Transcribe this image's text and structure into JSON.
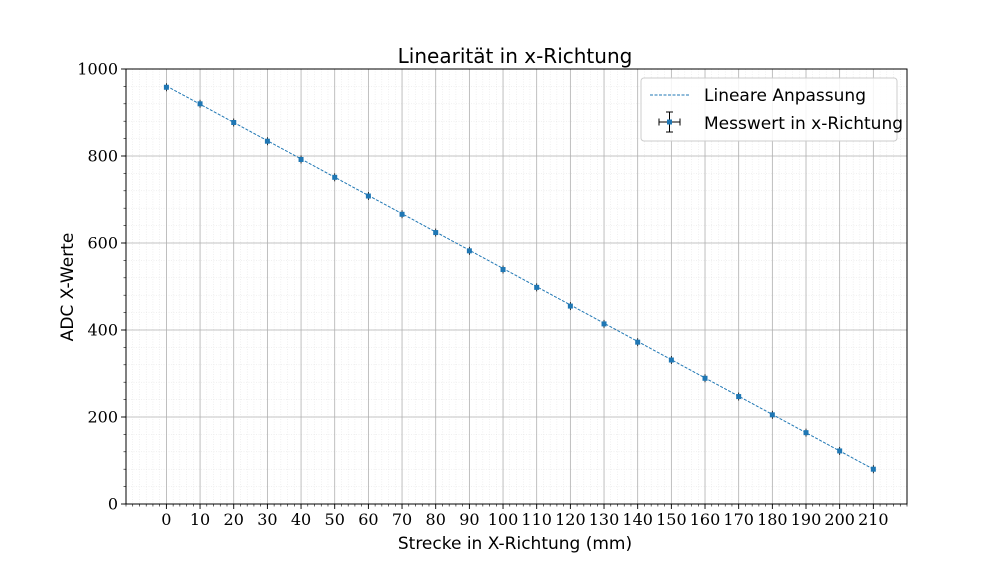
{
  "chart_data": {
    "type": "scatter",
    "title": "Linearität in x-Richtung",
    "xlabel": "Strecke in X-Richtung (mm)",
    "ylabel": "ADC X-Werte",
    "xlim": [
      -12,
      220
    ],
    "ylim": [
      0,
      1000
    ],
    "x_ticks": [
      0,
      10,
      20,
      30,
      40,
      50,
      60,
      70,
      80,
      90,
      100,
      110,
      120,
      130,
      140,
      150,
      160,
      170,
      180,
      190,
      200,
      210
    ],
    "y_ticks": [
      0,
      200,
      400,
      600,
      800,
      1000
    ],
    "grid": true,
    "legend_position": "top-right",
    "series": [
      {
        "name": "Lineare Anpassung",
        "kind": "line",
        "style": "dashed",
        "color": "#1f77b4",
        "x": [
          0,
          210
        ],
        "y": [
          961,
          80
        ]
      },
      {
        "name": "Messwert in x-Richtung",
        "kind": "errorbar",
        "color": "#1f77b4",
        "x": [
          0,
          10,
          20,
          30,
          40,
          50,
          60,
          70,
          80,
          90,
          100,
          110,
          120,
          130,
          140,
          150,
          160,
          170,
          180,
          190,
          200,
          210
        ],
        "y": [
          958,
          920,
          877,
          834,
          792,
          751,
          708,
          666,
          624,
          582,
          539,
          498,
          455,
          414,
          372,
          331,
          289,
          247,
          205,
          164,
          122,
          80
        ]
      }
    ]
  }
}
